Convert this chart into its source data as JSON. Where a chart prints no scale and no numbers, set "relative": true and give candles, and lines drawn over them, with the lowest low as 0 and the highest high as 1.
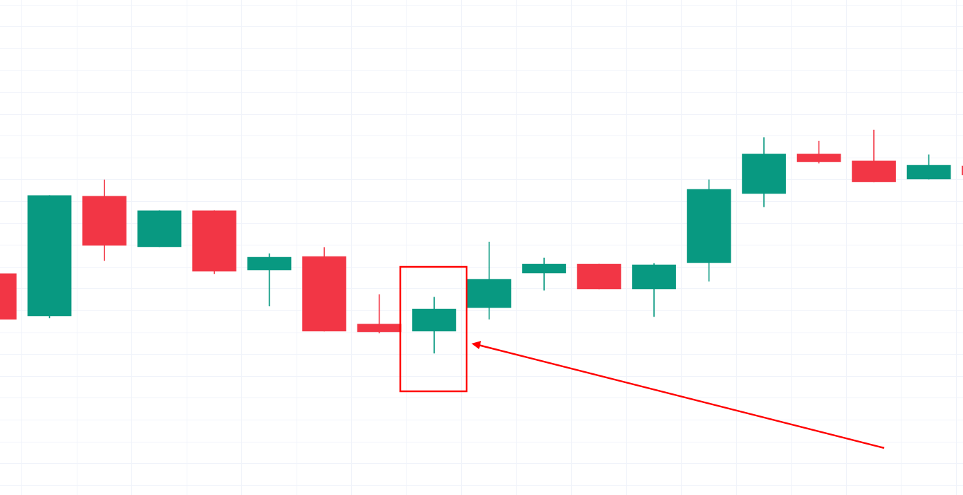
{
  "chart_data": {
    "type": "candlestick",
    "relative": true,
    "grid": true,
    "categories": [
      null,
      null,
      null,
      null,
      null,
      null,
      null,
      null,
      null,
      null,
      null,
      null,
      null,
      null,
      null,
      null,
      null,
      null,
      null
    ],
    "ohlc": [
      [
        0.356,
        0.356,
        0.152,
        0.152
      ],
      [
        0.167,
        0.706,
        0.158,
        0.706
      ],
      [
        0.703,
        0.777,
        0.415,
        0.483
      ],
      [
        0.477,
        0.638,
        0.477,
        0.638
      ],
      [
        0.638,
        0.638,
        0.356,
        0.368
      ],
      [
        0.372,
        0.446,
        0.211,
        0.43
      ],
      [
        0.433,
        0.474,
        0.099,
        0.099
      ],
      [
        0.13,
        0.263,
        0.09,
        0.096
      ],
      [
        0.099,
        0.251,
        0,
        0.198
      ],
      [
        0.204,
        0.498,
        0.152,
        0.331
      ],
      [
        0.359,
        0.427,
        0.282,
        0.399
      ],
      [
        0.399,
        0.399,
        0.288,
        0.288
      ],
      [
        0.288,
        0.402,
        0.164,
        0.396
      ],
      [
        0.406,
        0.777,
        0.322,
        0.734
      ],
      [
        0.715,
        0.966,
        0.656,
        0.892
      ],
      [
        0.892,
        0.95,
        0.851,
        0.858
      ],
      [
        0.861,
        1,
        0.768,
        0.768
      ],
      [
        0.78,
        0.889,
        0.78,
        0.842
      ],
      [
        0.839,
        0.839,
        0.799,
        0.799
      ]
    ],
    "colors": [
      "#f23645",
      "#089981",
      "#f23645",
      "#089981",
      "#f23645",
      "#089981",
      "#f23645",
      "#f23645",
      "#089981",
      "#089981",
      "#089981",
      "#f23645",
      "#089981",
      "#089981",
      "#089981",
      "#f23645",
      "#f23645",
      "#089981",
      "#f23645"
    ]
  }
}
